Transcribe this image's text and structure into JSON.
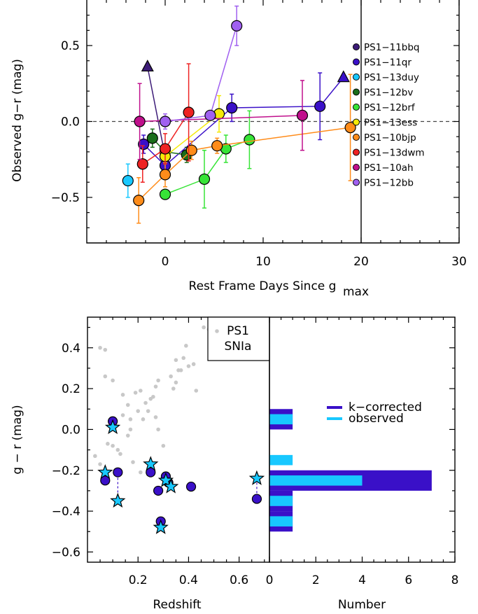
{
  "chart_data": [
    {
      "type": "scatter",
      "xlabel": "Rest Frame Days Since g",
      "xlabel_sub": "max",
      "ylabel": "Observed g−r (mag)",
      "xlim": [
        -8,
        30
      ],
      "ylim": [
        -0.8,
        0.8
      ],
      "xticks": [
        {
          "v": 0,
          "t": "0"
        },
        {
          "v": 10,
          "t": "10"
        },
        {
          "v": 20,
          "t": "20"
        },
        {
          "v": 30,
          "t": "30"
        }
      ],
      "yticks": [
        {
          "v": 0.5,
          "t": "0.5"
        },
        {
          "v": 0.0,
          "t": "0.0"
        },
        {
          "v": -0.5,
          "t": "−0.5"
        }
      ],
      "reference_hline": 0.0,
      "reference_vline": 20,
      "series": [
        {
          "name": "PS1−11bbq",
          "color": "#3d1c78",
          "points": [
            {
              "x": -1.8,
              "y": 0.36,
              "up": 0,
              "dn": 0,
              "m": "tri"
            },
            {
              "x": 0,
              "y": -0.23,
              "up": 0.04,
              "dn": 0.04,
              "m": "c"
            }
          ]
        },
        {
          "name": "PS1−11qr",
          "color": "#3a10c8",
          "points": [
            {
              "x": -2.2,
              "y": -0.15,
              "up": 0.06,
              "dn": 0.06,
              "m": "c"
            },
            {
              "x": 0,
              "y": -0.29,
              "up": 0.05,
              "dn": 0.05,
              "m": "c"
            },
            {
              "x": 6.8,
              "y": 0.09,
              "up": 0.09,
              "dn": 0.09,
              "m": "c"
            },
            {
              "x": 15.8,
              "y": 0.1,
              "up": 0.22,
              "dn": 0.22,
              "m": "c"
            },
            {
              "x": 18.2,
              "y": 0.29,
              "up": 0,
              "dn": 0,
              "m": "tri"
            }
          ]
        },
        {
          "name": "PS1−13duy",
          "color": "#18c8ff",
          "points": [
            {
              "x": -3.8,
              "y": -0.39,
              "up": 0.11,
              "dn": 0.11,
              "m": "c"
            }
          ]
        },
        {
          "name": "PS1−12bv",
          "color": "#1a6e1a",
          "points": [
            {
              "x": -1.3,
              "y": -0.11,
              "up": 0.06,
              "dn": 0.06,
              "m": "c"
            },
            {
              "x": 0,
              "y": -0.2,
              "up": 0.04,
              "dn": 0.04,
              "m": "c"
            },
            {
              "x": 2.2,
              "y": -0.22,
              "up": 0.05,
              "dn": 0.05,
              "m": "c"
            }
          ]
        },
        {
          "name": "PS1−12brf",
          "color": "#37e437",
          "points": [
            {
              "x": 0,
              "y": -0.48,
              "up": 0.03,
              "dn": 0.03,
              "m": "c"
            },
            {
              "x": 4,
              "y": -0.38,
              "up": 0.19,
              "dn": 0.19,
              "m": "c"
            },
            {
              "x": 6.2,
              "y": -0.18,
              "up": 0.09,
              "dn": 0.09,
              "m": "c"
            },
            {
              "x": 8.6,
              "y": -0.12,
              "up": 0.19,
              "dn": 0.19,
              "m": "c"
            }
          ]
        },
        {
          "name": "PS1−13ess",
          "color": "#f4ea08",
          "points": [
            {
              "x": 0,
              "y": -0.23,
              "up": 0.05,
              "dn": 0.05,
              "m": "c"
            },
            {
              "x": 5.5,
              "y": 0.05,
              "up": 0.12,
              "dn": 0.12,
              "m": "c"
            }
          ]
        },
        {
          "name": "PS1−10bjp",
          "color": "#ff8c1a",
          "points": [
            {
              "x": -2.7,
              "y": -0.52,
              "up": 0.15,
              "dn": 0.15,
              "m": "c"
            },
            {
              "x": 0,
              "y": -0.35,
              "up": 0.08,
              "dn": 0.08,
              "m": "c"
            },
            {
              "x": 2.7,
              "y": -0.19,
              "up": 0.06,
              "dn": 0.06,
              "m": "c"
            },
            {
              "x": 5.3,
              "y": -0.16,
              "up": 0.05,
              "dn": 0.05,
              "m": "c"
            },
            {
              "x": 18.9,
              "y": -0.04,
              "up": 0.35,
              "dn": 0.35,
              "m": "c"
            }
          ]
        },
        {
          "name": "PS1−13dwm",
          "color": "#ee2222",
          "points": [
            {
              "x": -2.3,
              "y": -0.28,
              "up": 0.12,
              "dn": 0.12,
              "m": "c"
            },
            {
              "x": 0,
              "y": -0.18,
              "up": 0.1,
              "dn": 0.1,
              "m": "c"
            },
            {
              "x": 2.4,
              "y": 0.06,
              "up": 0.32,
              "dn": 0.32,
              "m": "c"
            }
          ]
        },
        {
          "name": "PS1−10ah",
          "color": "#c0108c",
          "points": [
            {
              "x": -2.6,
              "y": 0.0,
              "up": 0.25,
              "dn": 0.25,
              "m": "c"
            },
            {
              "x": 14,
              "y": 0.04,
              "up": 0.23,
              "dn": 0.23,
              "m": "c"
            }
          ]
        },
        {
          "name": "PS1−12bb",
          "color": "#a060f0",
          "points": [
            {
              "x": 0,
              "y": 0.0,
              "up": 0.05,
              "dn": 0.05,
              "m": "c"
            },
            {
              "x": 4.6,
              "y": 0.04,
              "up": 0.03,
              "dn": 0.03,
              "m": "c"
            },
            {
              "x": 7.3,
              "y": 0.63,
              "up": 0.13,
              "dn": 0.13,
              "m": "c"
            }
          ]
        }
      ]
    },
    {
      "type": "scatter",
      "xlabel": "Redshift",
      "ylabel": "g − r (mag)",
      "xlim": [
        0.0,
        0.72
      ],
      "ylim": [
        -0.65,
        0.55
      ],
      "xticks": [
        {
          "v": 0.2,
          "t": "0.2"
        },
        {
          "v": 0.4,
          "t": "0.4"
        },
        {
          "v": 0.6,
          "t": "0.6"
        }
      ],
      "yticks": [
        {
          "v": 0.4,
          "t": "0.4"
        },
        {
          "v": 0.2,
          "t": "0.2"
        },
        {
          "v": 0.0,
          "t": "0.0"
        },
        {
          "v": -0.2,
          "t": "−0.2"
        },
        {
          "v": -0.4,
          "t": "−0.4"
        },
        {
          "v": -0.6,
          "t": "−0.6"
        }
      ],
      "inset_label": [
        "PS1",
        "SNIa"
      ],
      "snia": [
        [
          0.05,
          0.4
        ],
        [
          0.07,
          0.39
        ],
        [
          0.07,
          0.26
        ],
        [
          0.1,
          0.24
        ],
        [
          0.03,
          -0.13
        ],
        [
          0.05,
          -0.17
        ],
        [
          0.08,
          -0.07
        ],
        [
          0.1,
          -0.08
        ],
        [
          0.12,
          -0.1
        ],
        [
          0.13,
          -0.12
        ],
        [
          0.11,
          -0.2
        ],
        [
          0.16,
          -0.03
        ],
        [
          0.17,
          0.0
        ],
        [
          0.14,
          0.07
        ],
        [
          0.14,
          0.17
        ],
        [
          0.16,
          0.12
        ],
        [
          0.17,
          0.05
        ],
        [
          0.18,
          -0.16
        ],
        [
          0.19,
          0.18
        ],
        [
          0.2,
          0.09
        ],
        [
          0.21,
          0.19
        ],
        [
          0.22,
          0.05
        ],
        [
          0.23,
          0.13
        ],
        [
          0.24,
          0.09
        ],
        [
          0.25,
          0.15
        ],
        [
          0.26,
          0.16
        ],
        [
          0.27,
          0.21
        ],
        [
          0.28,
          0.24
        ],
        [
          0.27,
          0.06
        ],
        [
          0.28,
          0.0
        ],
        [
          0.3,
          -0.08
        ],
        [
          0.33,
          0.26
        ],
        [
          0.34,
          0.2
        ],
        [
          0.35,
          0.34
        ],
        [
          0.36,
          0.29
        ],
        [
          0.35,
          0.23
        ],
        [
          0.37,
          0.29
        ],
        [
          0.38,
          0.35
        ],
        [
          0.39,
          0.41
        ],
        [
          0.42,
          0.32
        ],
        [
          0.4,
          0.31
        ],
        [
          0.43,
          0.19
        ],
        [
          0.46,
          0.5
        ],
        [
          0.48,
          0.49
        ],
        [
          0.5,
          0.45
        ],
        [
          0.5,
          0.42
        ],
        [
          0.56,
          0.51
        ],
        [
          0.21,
          -0.21
        ],
        [
          0.24,
          -0.22
        ]
      ],
      "kcorrected": [
        [
          0.07,
          -0.25
        ],
        [
          0.1,
          0.04
        ],
        [
          0.12,
          -0.21
        ],
        [
          0.25,
          -0.21
        ],
        [
          0.28,
          -0.3
        ],
        [
          0.29,
          -0.45
        ],
        [
          0.31,
          -0.23
        ],
        [
          0.32,
          -0.26
        ],
        [
          0.41,
          -0.28
        ],
        [
          0.67,
          -0.34
        ]
      ],
      "observed": [
        [
          0.07,
          -0.21
        ],
        [
          0.1,
          0.01
        ],
        [
          0.12,
          -0.35
        ],
        [
          0.25,
          -0.17
        ],
        [
          0.29,
          -0.48
        ],
        [
          0.31,
          -0.25
        ],
        [
          0.33,
          -0.28
        ],
        [
          0.67,
          -0.24
        ]
      ]
    },
    {
      "type": "bar",
      "orientation": "horizontal",
      "xlabel": "Number",
      "xlim": [
        0,
        8
      ],
      "xticks": [
        {
          "v": 0,
          "t": "0"
        },
        {
          "v": 2,
          "t": "2"
        },
        {
          "v": 4,
          "t": "4"
        },
        {
          "v": 6,
          "t": "6"
        },
        {
          "v": 8,
          "t": "8"
        }
      ],
      "legend": [
        {
          "name": "k−corrected",
          "color": "#3a10c8"
        },
        {
          "name": "observed",
          "color": "#18c8ff"
        }
      ],
      "kcorrected_bins": [
        {
          "lo": 0.0,
          "hi": 0.1,
          "count": 1
        },
        {
          "lo": -0.3,
          "hi": -0.2,
          "count": 7
        },
        {
          "lo": -0.4,
          "hi": -0.3,
          "count": 1
        },
        {
          "lo": -0.5,
          "hi": -0.4,
          "count": 1
        }
      ],
      "observed_bins": [
        {
          "lo": 0.0,
          "hi": 0.1,
          "count": 1
        },
        {
          "lo": -0.2,
          "hi": -0.1,
          "count": 1
        },
        {
          "lo": -0.3,
          "hi": -0.2,
          "count": 4
        },
        {
          "lo": -0.4,
          "hi": -0.3,
          "count": 1
        },
        {
          "lo": -0.5,
          "hi": -0.4,
          "count": 1
        }
      ]
    }
  ]
}
